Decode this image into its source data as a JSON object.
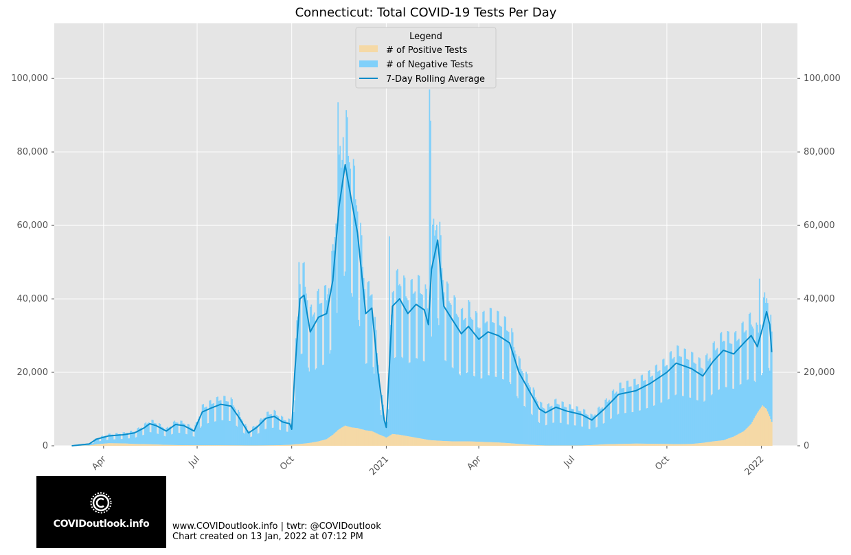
{
  "chart_data": {
    "type": "bar",
    "title": "Connecticut: Total COVID-19 Tests Per Day",
    "xlabel": "",
    "ylabel": "",
    "ylim": [
      0,
      115000
    ],
    "grid": true,
    "legend_position": "top-center",
    "legend_title": "Legend",
    "y_ticks": [
      0,
      20000,
      40000,
      60000,
      80000,
      100000
    ],
    "y_tick_labels": [
      "0",
      "20,000",
      "40,000",
      "60,000",
      "80,000",
      "100,000"
    ],
    "x_ticks": [
      {
        "date": "2020-04-01",
        "label": "Apr"
      },
      {
        "date": "2020-07-01",
        "label": "Jul"
      },
      {
        "date": "2020-10-01",
        "label": "Oct"
      },
      {
        "date": "2021-01-01",
        "label": "2021"
      },
      {
        "date": "2021-04-01",
        "label": "Apr"
      },
      {
        "date": "2021-07-01",
        "label": "Jul"
      },
      {
        "date": "2021-10-01",
        "label": "Oct"
      },
      {
        "date": "2022-01-01",
        "label": "2022"
      }
    ],
    "x_range": [
      "2020-02-13",
      "2022-02-05"
    ],
    "series": [
      {
        "name": "# of Positive Tests",
        "color": "#f5d9a6",
        "kind": "stacked-bar"
      },
      {
        "name": "# of Negative Tests",
        "color": "#80d0fa",
        "kind": "stacked-bar"
      },
      {
        "name": "7-Day Rolling Average",
        "color": "#0a8cc8",
        "kind": "line"
      }
    ],
    "keypoints": [
      {
        "date": "2020-03-01",
        "total": 0,
        "positive": 0
      },
      {
        "date": "2020-03-18",
        "total": 500,
        "positive": 100
      },
      {
        "date": "2020-03-25",
        "total": 1800,
        "positive": 400
      },
      {
        "date": "2020-04-06",
        "total": 2700,
        "positive": 700
      },
      {
        "date": "2020-04-20",
        "total": 3000,
        "positive": 650
      },
      {
        "date": "2020-05-01",
        "total": 3500,
        "positive": 500
      },
      {
        "date": "2020-05-10",
        "total": 4800,
        "positive": 450
      },
      {
        "date": "2020-05-16",
        "total": 6000,
        "positive": 400
      },
      {
        "date": "2020-05-22",
        "total": 5500,
        "positive": 350
      },
      {
        "date": "2020-06-01",
        "total": 4000,
        "positive": 250
      },
      {
        "date": "2020-06-10",
        "total": 5800,
        "positive": 200
      },
      {
        "date": "2020-06-18",
        "total": 5500,
        "positive": 180
      },
      {
        "date": "2020-06-28",
        "total": 4000,
        "positive": 150
      },
      {
        "date": "2020-07-06",
        "total": 9200,
        "positive": 150
      },
      {
        "date": "2020-07-14",
        "total": 10200,
        "positive": 150
      },
      {
        "date": "2020-07-24",
        "total": 11300,
        "positive": 150
      },
      {
        "date": "2020-08-03",
        "total": 10800,
        "positive": 130
      },
      {
        "date": "2020-08-10",
        "total": 8000,
        "positive": 120
      },
      {
        "date": "2020-08-20",
        "total": 3500,
        "positive": 100
      },
      {
        "date": "2020-08-28",
        "total": 5000,
        "positive": 100
      },
      {
        "date": "2020-09-06",
        "total": 7500,
        "positive": 120
      },
      {
        "date": "2020-09-14",
        "total": 8000,
        "positive": 150
      },
      {
        "date": "2020-09-22",
        "total": 6500,
        "positive": 200
      },
      {
        "date": "2020-09-29",
        "total": 6000,
        "positive": 250
      },
      {
        "date": "2020-10-01",
        "total": 4500,
        "positive": 300
      },
      {
        "date": "2020-10-04",
        "total": 20000,
        "positive": 400
      },
      {
        "date": "2020-10-09",
        "total": 40000,
        "positive": 500
      },
      {
        "date": "2020-10-13",
        "total": 41000,
        "positive": 600
      },
      {
        "date": "2020-10-19",
        "total": 31000,
        "positive": 800
      },
      {
        "date": "2020-10-27",
        "total": 35000,
        "positive": 1200
      },
      {
        "date": "2020-11-04",
        "total": 36000,
        "positive": 1800
      },
      {
        "date": "2020-11-10",
        "total": 45000,
        "positive": 3000
      },
      {
        "date": "2020-11-16",
        "total": 65000,
        "positive": 4500
      },
      {
        "date": "2020-11-22",
        "total": 76500,
        "positive": 5500
      },
      {
        "date": "2020-11-28",
        "total": 67000,
        "positive": 5000
      },
      {
        "date": "2020-12-04",
        "total": 58000,
        "positive": 4800
      },
      {
        "date": "2020-12-12",
        "total": 36000,
        "positive": 4200
      },
      {
        "date": "2020-12-18",
        "total": 37500,
        "positive": 4000
      },
      {
        "date": "2020-12-24",
        "total": 20000,
        "positive": 3200
      },
      {
        "date": "2020-12-30",
        "total": 7000,
        "positive": 2500
      },
      {
        "date": "2021-01-01",
        "total": 5000,
        "positive": 2200
      },
      {
        "date": "2021-01-07",
        "total": 38000,
        "positive": 3200
      },
      {
        "date": "2021-01-14",
        "total": 40000,
        "positive": 3000
      },
      {
        "date": "2021-01-22",
        "total": 36000,
        "positive": 2600
      },
      {
        "date": "2021-01-30",
        "total": 38500,
        "positive": 2200
      },
      {
        "date": "2021-02-07",
        "total": 37000,
        "positive": 1800
      },
      {
        "date": "2021-02-11",
        "total": 33000,
        "positive": 1600
      },
      {
        "date": "2021-02-14",
        "total": 48000,
        "positive": 1500
      },
      {
        "date": "2021-02-20",
        "total": 56000,
        "positive": 1400
      },
      {
        "date": "2021-02-26",
        "total": 38000,
        "positive": 1300
      },
      {
        "date": "2021-03-07",
        "total": 34000,
        "positive": 1200
      },
      {
        "date": "2021-03-15",
        "total": 30500,
        "positive": 1200
      },
      {
        "date": "2021-03-22",
        "total": 32500,
        "positive": 1200
      },
      {
        "date": "2021-04-01",
        "total": 29000,
        "positive": 1100
      },
      {
        "date": "2021-04-10",
        "total": 31000,
        "positive": 1000
      },
      {
        "date": "2021-04-20",
        "total": 30000,
        "positive": 900
      },
      {
        "date": "2021-05-01",
        "total": 28000,
        "positive": 700
      },
      {
        "date": "2021-05-10",
        "total": 20000,
        "positive": 500
      },
      {
        "date": "2021-05-20",
        "total": 15000,
        "positive": 300
      },
      {
        "date": "2021-05-30",
        "total": 10000,
        "positive": 150
      },
      {
        "date": "2021-06-05",
        "total": 9000,
        "positive": 100
      },
      {
        "date": "2021-06-15",
        "total": 10500,
        "positive": 80
      },
      {
        "date": "2021-06-25",
        "total": 9500,
        "positive": 80
      },
      {
        "date": "2021-07-10",
        "total": 8500,
        "positive": 100
      },
      {
        "date": "2021-07-20",
        "total": 7000,
        "positive": 200
      },
      {
        "date": "2021-08-01",
        "total": 10000,
        "positive": 400
      },
      {
        "date": "2021-08-15",
        "total": 14000,
        "positive": 500
      },
      {
        "date": "2021-09-01",
        "total": 15000,
        "positive": 600
      },
      {
        "date": "2021-09-15",
        "total": 17000,
        "positive": 550
      },
      {
        "date": "2021-10-01",
        "total": 20000,
        "positive": 500
      },
      {
        "date": "2021-10-10",
        "total": 22500,
        "positive": 450
      },
      {
        "date": "2021-10-25",
        "total": 21000,
        "positive": 500
      },
      {
        "date": "2021-11-05",
        "total": 19000,
        "positive": 800
      },
      {
        "date": "2021-11-15",
        "total": 23000,
        "positive": 1200
      },
      {
        "date": "2021-11-25",
        "total": 26000,
        "positive": 1500
      },
      {
        "date": "2021-12-05",
        "total": 25000,
        "positive": 2500
      },
      {
        "date": "2021-12-15",
        "total": 28000,
        "positive": 4000
      },
      {
        "date": "2021-12-22",
        "total": 30000,
        "positive": 6000
      },
      {
        "date": "2021-12-28",
        "total": 27000,
        "positive": 9000
      },
      {
        "date": "2022-01-02",
        "total": 32000,
        "positive": 11000
      },
      {
        "date": "2022-01-06",
        "total": 36500,
        "positive": 10000
      },
      {
        "date": "2022-01-09",
        "total": 33000,
        "positive": 8000
      },
      {
        "date": "2022-01-11",
        "total": 25500,
        "positive": 6500
      }
    ],
    "spikes": [
      {
        "date": "2020-11-15",
        "total": 93500
      },
      {
        "date": "2020-11-20",
        "total": 84000
      },
      {
        "date": "2021-02-12",
        "total": 97000
      },
      {
        "date": "2021-02-13",
        "total": 88500
      },
      {
        "date": "2020-10-08",
        "total": 50000
      },
      {
        "date": "2021-01-04",
        "total": 57000
      },
      {
        "date": "2021-12-30",
        "total": 45500
      }
    ]
  },
  "footer": {
    "line1": "www.COVIDoutlook.info | twtr: @COVIDoutlook",
    "line2": "Chart created on 13 Jan, 2022 at 07:12 PM"
  },
  "logo": {
    "text": "COVIDoutlook.info",
    "colors": {
      "background": "#000000",
      "foreground": "#ffffff"
    }
  },
  "colors": {
    "plot_background": "#e5e5e5",
    "grid": "#ffffff",
    "tick_text": "#555555"
  }
}
